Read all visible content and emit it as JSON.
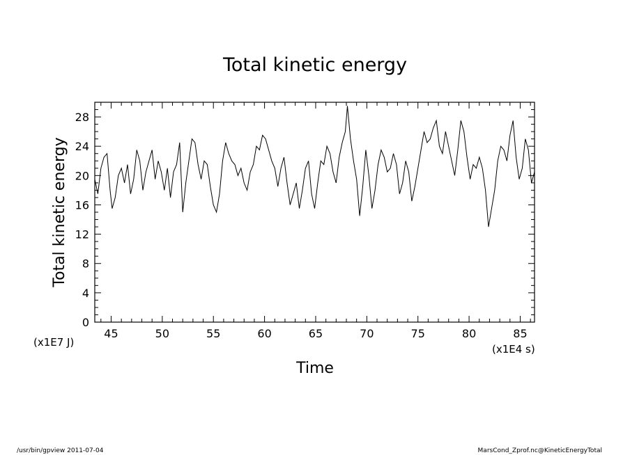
{
  "chart_data": {
    "type": "line",
    "title": "Total kinetic energy",
    "xlabel": "Time",
    "ylabel": "Total kinetic energy",
    "x_unit": "(x1E4 s)",
    "y_unit": "(x1E7 J)",
    "xlim": [
      43.4,
      86.4
    ],
    "ylim": [
      0,
      30
    ],
    "xticks": [
      45,
      50,
      55,
      60,
      65,
      70,
      75,
      80,
      85
    ],
    "yticks": [
      0,
      4,
      8,
      12,
      16,
      20,
      24,
      28
    ],
    "grid": false,
    "series": [
      {
        "points": [
          [
            43.4,
            19.5
          ],
          [
            43.7,
            17.5
          ],
          [
            44.0,
            21.0
          ],
          [
            44.3,
            22.5
          ],
          [
            44.6,
            23.0
          ],
          [
            44.9,
            18.0
          ],
          [
            45.1,
            15.5
          ],
          [
            45.4,
            17.0
          ],
          [
            45.7,
            20.0
          ],
          [
            46.0,
            21.0
          ],
          [
            46.3,
            19.0
          ],
          [
            46.6,
            21.5
          ],
          [
            46.9,
            17.5
          ],
          [
            47.2,
            19.5
          ],
          [
            47.5,
            23.5
          ],
          [
            47.8,
            22.0
          ],
          [
            48.1,
            18.0
          ],
          [
            48.4,
            20.5
          ],
          [
            48.7,
            22.0
          ],
          [
            49.0,
            23.5
          ],
          [
            49.3,
            19.5
          ],
          [
            49.6,
            22.0
          ],
          [
            49.9,
            20.5
          ],
          [
            50.2,
            18.0
          ],
          [
            50.5,
            21.0
          ],
          [
            50.8,
            17.0
          ],
          [
            51.1,
            20.5
          ],
          [
            51.4,
            21.5
          ],
          [
            51.7,
            24.5
          ],
          [
            52.0,
            15.0
          ],
          [
            52.3,
            19.0
          ],
          [
            52.6,
            22.0
          ],
          [
            52.9,
            25.0
          ],
          [
            53.2,
            24.5
          ],
          [
            53.5,
            21.5
          ],
          [
            53.8,
            19.5
          ],
          [
            54.1,
            22.0
          ],
          [
            54.4,
            21.5
          ],
          [
            54.7,
            18.5
          ],
          [
            55.0,
            16.0
          ],
          [
            55.3,
            15.0
          ],
          [
            55.6,
            17.5
          ],
          [
            55.9,
            22.0
          ],
          [
            56.2,
            24.5
          ],
          [
            56.5,
            23.0
          ],
          [
            56.8,
            22.0
          ],
          [
            57.1,
            21.5
          ],
          [
            57.4,
            20.0
          ],
          [
            57.7,
            21.0
          ],
          [
            58.0,
            19.0
          ],
          [
            58.3,
            18.0
          ],
          [
            58.6,
            20.5
          ],
          [
            58.9,
            21.5
          ],
          [
            59.2,
            24.0
          ],
          [
            59.5,
            23.5
          ],
          [
            59.8,
            25.5
          ],
          [
            60.1,
            25.0
          ],
          [
            60.4,
            23.5
          ],
          [
            60.7,
            22.0
          ],
          [
            61.0,
            21.0
          ],
          [
            61.3,
            18.5
          ],
          [
            61.6,
            21.0
          ],
          [
            61.9,
            22.5
          ],
          [
            62.2,
            19.0
          ],
          [
            62.5,
            16.0
          ],
          [
            62.8,
            17.5
          ],
          [
            63.1,
            19.0
          ],
          [
            63.4,
            15.5
          ],
          [
            63.7,
            18.0
          ],
          [
            64.0,
            21.0
          ],
          [
            64.3,
            22.0
          ],
          [
            64.6,
            17.5
          ],
          [
            64.9,
            15.5
          ],
          [
            65.2,
            19.0
          ],
          [
            65.5,
            22.0
          ],
          [
            65.8,
            21.5
          ],
          [
            66.1,
            24.0
          ],
          [
            66.4,
            23.0
          ],
          [
            66.7,
            20.5
          ],
          [
            67.0,
            19.0
          ],
          [
            67.3,
            22.5
          ],
          [
            67.6,
            24.5
          ],
          [
            67.9,
            26.0
          ],
          [
            68.1,
            29.5
          ],
          [
            68.4,
            25.0
          ],
          [
            68.7,
            22.0
          ],
          [
            69.0,
            19.5
          ],
          [
            69.3,
            14.5
          ],
          [
            69.6,
            18.5
          ],
          [
            69.9,
            23.5
          ],
          [
            70.2,
            20.0
          ],
          [
            70.5,
            15.5
          ],
          [
            70.8,
            18.0
          ],
          [
            71.1,
            21.5
          ],
          [
            71.4,
            23.5
          ],
          [
            71.7,
            22.5
          ],
          [
            72.0,
            20.5
          ],
          [
            72.3,
            21.0
          ],
          [
            72.6,
            23.0
          ],
          [
            72.9,
            21.5
          ],
          [
            73.2,
            17.5
          ],
          [
            73.5,
            19.0
          ],
          [
            73.8,
            22.0
          ],
          [
            74.1,
            20.5
          ],
          [
            74.4,
            16.5
          ],
          [
            74.7,
            18.5
          ],
          [
            75.0,
            21.0
          ],
          [
            75.3,
            23.5
          ],
          [
            75.6,
            26.0
          ],
          [
            75.9,
            24.5
          ],
          [
            76.2,
            25.0
          ],
          [
            76.5,
            26.5
          ],
          [
            76.8,
            27.5
          ],
          [
            77.1,
            24.0
          ],
          [
            77.4,
            23.0
          ],
          [
            77.7,
            26.0
          ],
          [
            78.0,
            24.0
          ],
          [
            78.3,
            22.0
          ],
          [
            78.6,
            20.0
          ],
          [
            78.9,
            23.5
          ],
          [
            79.2,
            27.5
          ],
          [
            79.5,
            26.0
          ],
          [
            79.8,
            22.5
          ],
          [
            80.1,
            19.5
          ],
          [
            80.4,
            21.5
          ],
          [
            80.7,
            21.0
          ],
          [
            81.0,
            22.5
          ],
          [
            81.3,
            21.0
          ],
          [
            81.6,
            18.0
          ],
          [
            81.9,
            13.0
          ],
          [
            82.2,
            15.5
          ],
          [
            82.5,
            18.0
          ],
          [
            82.8,
            22.0
          ],
          [
            83.1,
            24.0
          ],
          [
            83.4,
            23.5
          ],
          [
            83.7,
            22.0
          ],
          [
            84.0,
            25.5
          ],
          [
            84.3,
            27.5
          ],
          [
            84.6,
            22.5
          ],
          [
            84.9,
            19.5
          ],
          [
            85.2,
            21.0
          ],
          [
            85.5,
            25.0
          ],
          [
            85.8,
            23.5
          ],
          [
            86.1,
            19.0
          ],
          [
            86.4,
            20.5
          ]
        ]
      }
    ]
  },
  "footer": {
    "left": "/usr/bin/gpview  2011-07-04",
    "right": "MarsCond_Zprof.nc@KineticEnergyTotal"
  }
}
